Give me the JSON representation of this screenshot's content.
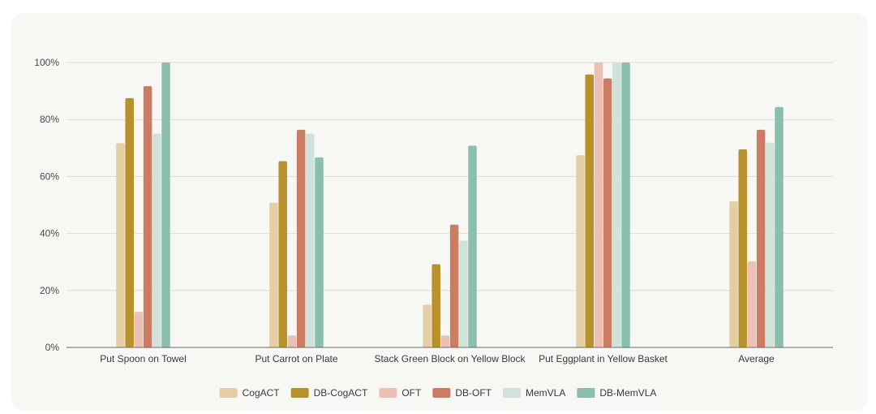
{
  "chart_data": {
    "type": "bar",
    "title": "",
    "xlabel": "",
    "ylabel": "",
    "ylim": [
      0,
      100
    ],
    "y_ticks": [
      "0%",
      "20%",
      "40%",
      "60%",
      "80%",
      "100%"
    ],
    "y_tick_values": [
      0,
      20,
      40,
      60,
      80,
      100
    ],
    "grid": true,
    "legend_position": "bottom-center",
    "categories": [
      "Put Spoon on Towel",
      "Put Carrot on Plate",
      "Stack Green Block on Yellow Block",
      "Put Eggplant in Yellow Basket",
      "Average"
    ],
    "series": [
      {
        "name": "CogACT",
        "color": "#e3cfa3",
        "values": [
          71.7,
          50.8,
          15.0,
          67.5,
          51.3
        ]
      },
      {
        "name": "DB-CogACT",
        "color": "#b8912a",
        "values": [
          87.5,
          65.4,
          29.2,
          95.8,
          69.5
        ]
      },
      {
        "name": "OFT",
        "color": "#ecc1b5",
        "values": [
          12.5,
          4.2,
          4.2,
          100.0,
          30.2
        ]
      },
      {
        "name": "DB-OFT",
        "color": "#cd7c64",
        "values": [
          91.7,
          76.4,
          43.1,
          94.4,
          76.4
        ]
      },
      {
        "name": "MemVLA",
        "color": "#cfe3da",
        "values": [
          75.0,
          75.0,
          37.5,
          100.0,
          71.9
        ]
      },
      {
        "name": "DB-MemVLA",
        "color": "#89bfab",
        "values": [
          100.0,
          66.7,
          70.8,
          100.0,
          84.4
        ]
      }
    ]
  }
}
